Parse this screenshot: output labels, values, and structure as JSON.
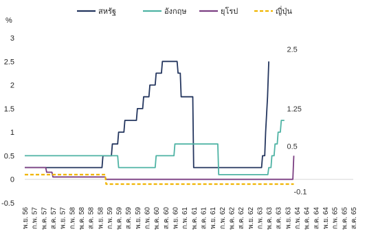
{
  "chart_data": {
    "type": "line",
    "ylabel": "%",
    "ylim": [
      -0.5,
      3
    ],
    "yticks": [
      "-0.5",
      "0",
      "0.5",
      "1",
      "1.5",
      "2",
      "2.5",
      "3"
    ],
    "legend_position": "top",
    "x": [
      "พ.ย. 56",
      "ก.พ. 57",
      "พ.ค. 57",
      "ส.ค. 57",
      "พ.ย. 57",
      "ก.พ. 58",
      "พ.ค. 58",
      "ส.ค. 58",
      "พ.ย. 58",
      "ก.พ. 59",
      "พ.ค. 59",
      "ส.ค. 59",
      "พ.ย. 59",
      "ก.พ. 60",
      "พ.ค. 60",
      "ส.ค. 60",
      "พ.ย. 60",
      "ก.พ. 61",
      "พ.ค. 61",
      "ส.ค. 61",
      "พ.ย. 61",
      "ก.พ. 62",
      "พ.ค. 62",
      "ส.ค. 62",
      "พ.ย. 62",
      "ก.พ. 63",
      "พ.ค. 63",
      "ส.ค. 63",
      "พ.ย. 63",
      "ก.พ. 64",
      "พ.ค. 64",
      "ส.ค. 64",
      "พ.ย. 64",
      "ก.พ. 65",
      "พ.ค. 65",
      "ส.ค. 65"
    ],
    "series": [
      {
        "name": "สหรัฐ",
        "color": "#23355e",
        "points": [
          [
            0,
            0.25
          ],
          [
            24.7,
            0.25
          ],
          [
            25,
            0.5
          ],
          [
            27.7,
            0.5
          ],
          [
            28,
            0.75
          ],
          [
            29.7,
            0.75
          ],
          [
            30,
            1
          ],
          [
            31.7,
            1
          ],
          [
            32,
            1.25
          ],
          [
            35.7,
            1.25
          ],
          [
            36,
            1.5
          ],
          [
            37.7,
            1.5
          ],
          [
            38,
            1.75
          ],
          [
            39.7,
            1.75
          ],
          [
            40,
            2
          ],
          [
            41.7,
            2
          ],
          [
            42,
            2.25
          ],
          [
            43.7,
            2.25
          ],
          [
            44,
            2.5
          ],
          [
            48.7,
            2.5
          ],
          [
            49,
            2.25
          ],
          [
            49.7,
            2.25
          ],
          [
            50,
            1.75
          ],
          [
            53.7,
            1.75
          ],
          [
            54,
            0.25
          ],
          [
            75.7,
            0.25
          ],
          [
            76,
            0.5
          ],
          [
            76.7,
            0.5
          ],
          [
            77,
            1
          ],
          [
            77.6,
            1.75
          ],
          [
            78,
            2.5
          ]
        ]
      },
      {
        "name": "อังกฤษ",
        "color": "#4eb3a4",
        "points": [
          [
            0,
            0.5
          ],
          [
            29.7,
            0.5
          ],
          [
            30,
            0.25
          ],
          [
            41.7,
            0.25
          ],
          [
            42,
            0.5
          ],
          [
            47.7,
            0.5
          ],
          [
            48,
            0.75
          ],
          [
            61.7,
            0.75
          ],
          [
            62,
            0.1
          ],
          [
            77.7,
            0.1
          ],
          [
            78,
            0.25
          ],
          [
            78.7,
            0.25
          ],
          [
            79,
            0.5
          ],
          [
            79.7,
            0.5
          ],
          [
            80,
            0.75
          ],
          [
            80.7,
            0.75
          ],
          [
            81,
            1
          ],
          [
            81.7,
            1
          ],
          [
            82,
            1.25
          ],
          [
            83,
            1.25
          ]
        ]
      },
      {
        "name": "ยุโรป",
        "color": "#7b3f82",
        "points": [
          [
            0,
            0.25
          ],
          [
            6.7,
            0.25
          ],
          [
            7,
            0.15
          ],
          [
            8.7,
            0.15
          ],
          [
            9,
            0.05
          ],
          [
            25.7,
            0.05
          ],
          [
            26,
            0
          ],
          [
            85.7,
            0
          ],
          [
            86,
            0.5
          ]
        ]
      },
      {
        "name": "ญี่ปุ่น",
        "color": "#f0b400",
        "dash": true,
        "points": [
          [
            0,
            0.1
          ],
          [
            25.7,
            0.1
          ],
          [
            26,
            -0.1
          ],
          [
            86,
            -0.1
          ]
        ]
      }
    ],
    "annotations": [
      {
        "text": "2.5",
        "x": 86,
        "y": 2.5
      },
      {
        "text": "1.25",
        "x": 86,
        "y": 1.25
      },
      {
        "text": "0.5",
        "x": 86,
        "y": 0.5
      },
      {
        "text": "-0.1",
        "x": 86,
        "y": -0.1
      }
    ]
  }
}
